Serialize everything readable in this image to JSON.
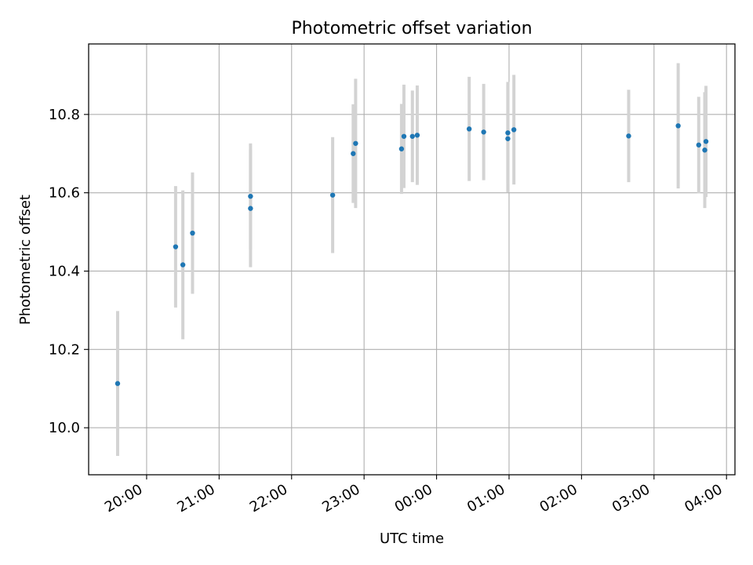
{
  "colors": {
    "point": "#1f77b4",
    "errorbar": "#d3d3d3",
    "grid": "#b0b0b0",
    "axes": "#000000"
  },
  "chart_data": {
    "type": "scatter",
    "title": "Photometric offset variation",
    "xlabel": "UTC time",
    "ylabel": "Photometric offset",
    "x_ticks": [
      "20:00",
      "21:00",
      "22:00",
      "23:00",
      "00:00",
      "01:00",
      "02:00",
      "03:00",
      "04:00"
    ],
    "y_ticks": [
      "10.0",
      "10.2",
      "10.4",
      "10.6",
      "10.8"
    ],
    "xlim": [
      "19:12",
      "04:07"
    ],
    "ylim": [
      9.88,
      10.98
    ],
    "grid": true,
    "points": [
      {
        "x": "19:36",
        "y": 10.113,
        "yerr": 0.185
      },
      {
        "x": "20:24",
        "y": 10.462,
        "yerr": 0.155
      },
      {
        "x": "20:30",
        "y": 10.416,
        "yerr": 0.19
      },
      {
        "x": "20:38",
        "y": 10.497,
        "yerr": 0.155
      },
      {
        "x": "21:26",
        "y": 10.591,
        "yerr": 0.135
      },
      {
        "x": "21:26",
        "y": 10.56,
        "yerr": 0.15
      },
      {
        "x": "22:34",
        "y": 10.594,
        "yerr": 0.148
      },
      {
        "x": "22:51",
        "y": 10.7,
        "yerr": 0.126
      },
      {
        "x": "22:53",
        "y": 10.726,
        "yerr": 0.165
      },
      {
        "x": "23:31",
        "y": 10.712,
        "yerr": 0.115
      },
      {
        "x": "23:33",
        "y": 10.744,
        "yerr": 0.132
      },
      {
        "x": "23:40",
        "y": 10.744,
        "yerr": 0.117
      },
      {
        "x": "23:44",
        "y": 10.747,
        "yerr": 0.127
      },
      {
        "x": "00:27",
        "y": 10.763,
        "yerr": 0.133
      },
      {
        "x": "00:39",
        "y": 10.755,
        "yerr": 0.123
      },
      {
        "x": "00:59",
        "y": 10.738,
        "yerr": 0.137
      },
      {
        "x": "00:59",
        "y": 10.753,
        "yerr": 0.13
      },
      {
        "x": "01:04",
        "y": 10.761,
        "yerr": 0.14
      },
      {
        "x": "02:39",
        "y": 10.745,
        "yerr": 0.118
      },
      {
        "x": "03:20",
        "y": 10.771,
        "yerr": 0.16
      },
      {
        "x": "03:37",
        "y": 10.722,
        "yerr": 0.123
      },
      {
        "x": "03:42",
        "y": 10.709,
        "yerr": 0.148
      },
      {
        "x": "03:43",
        "y": 10.731,
        "yerr": 0.142
      }
    ]
  }
}
